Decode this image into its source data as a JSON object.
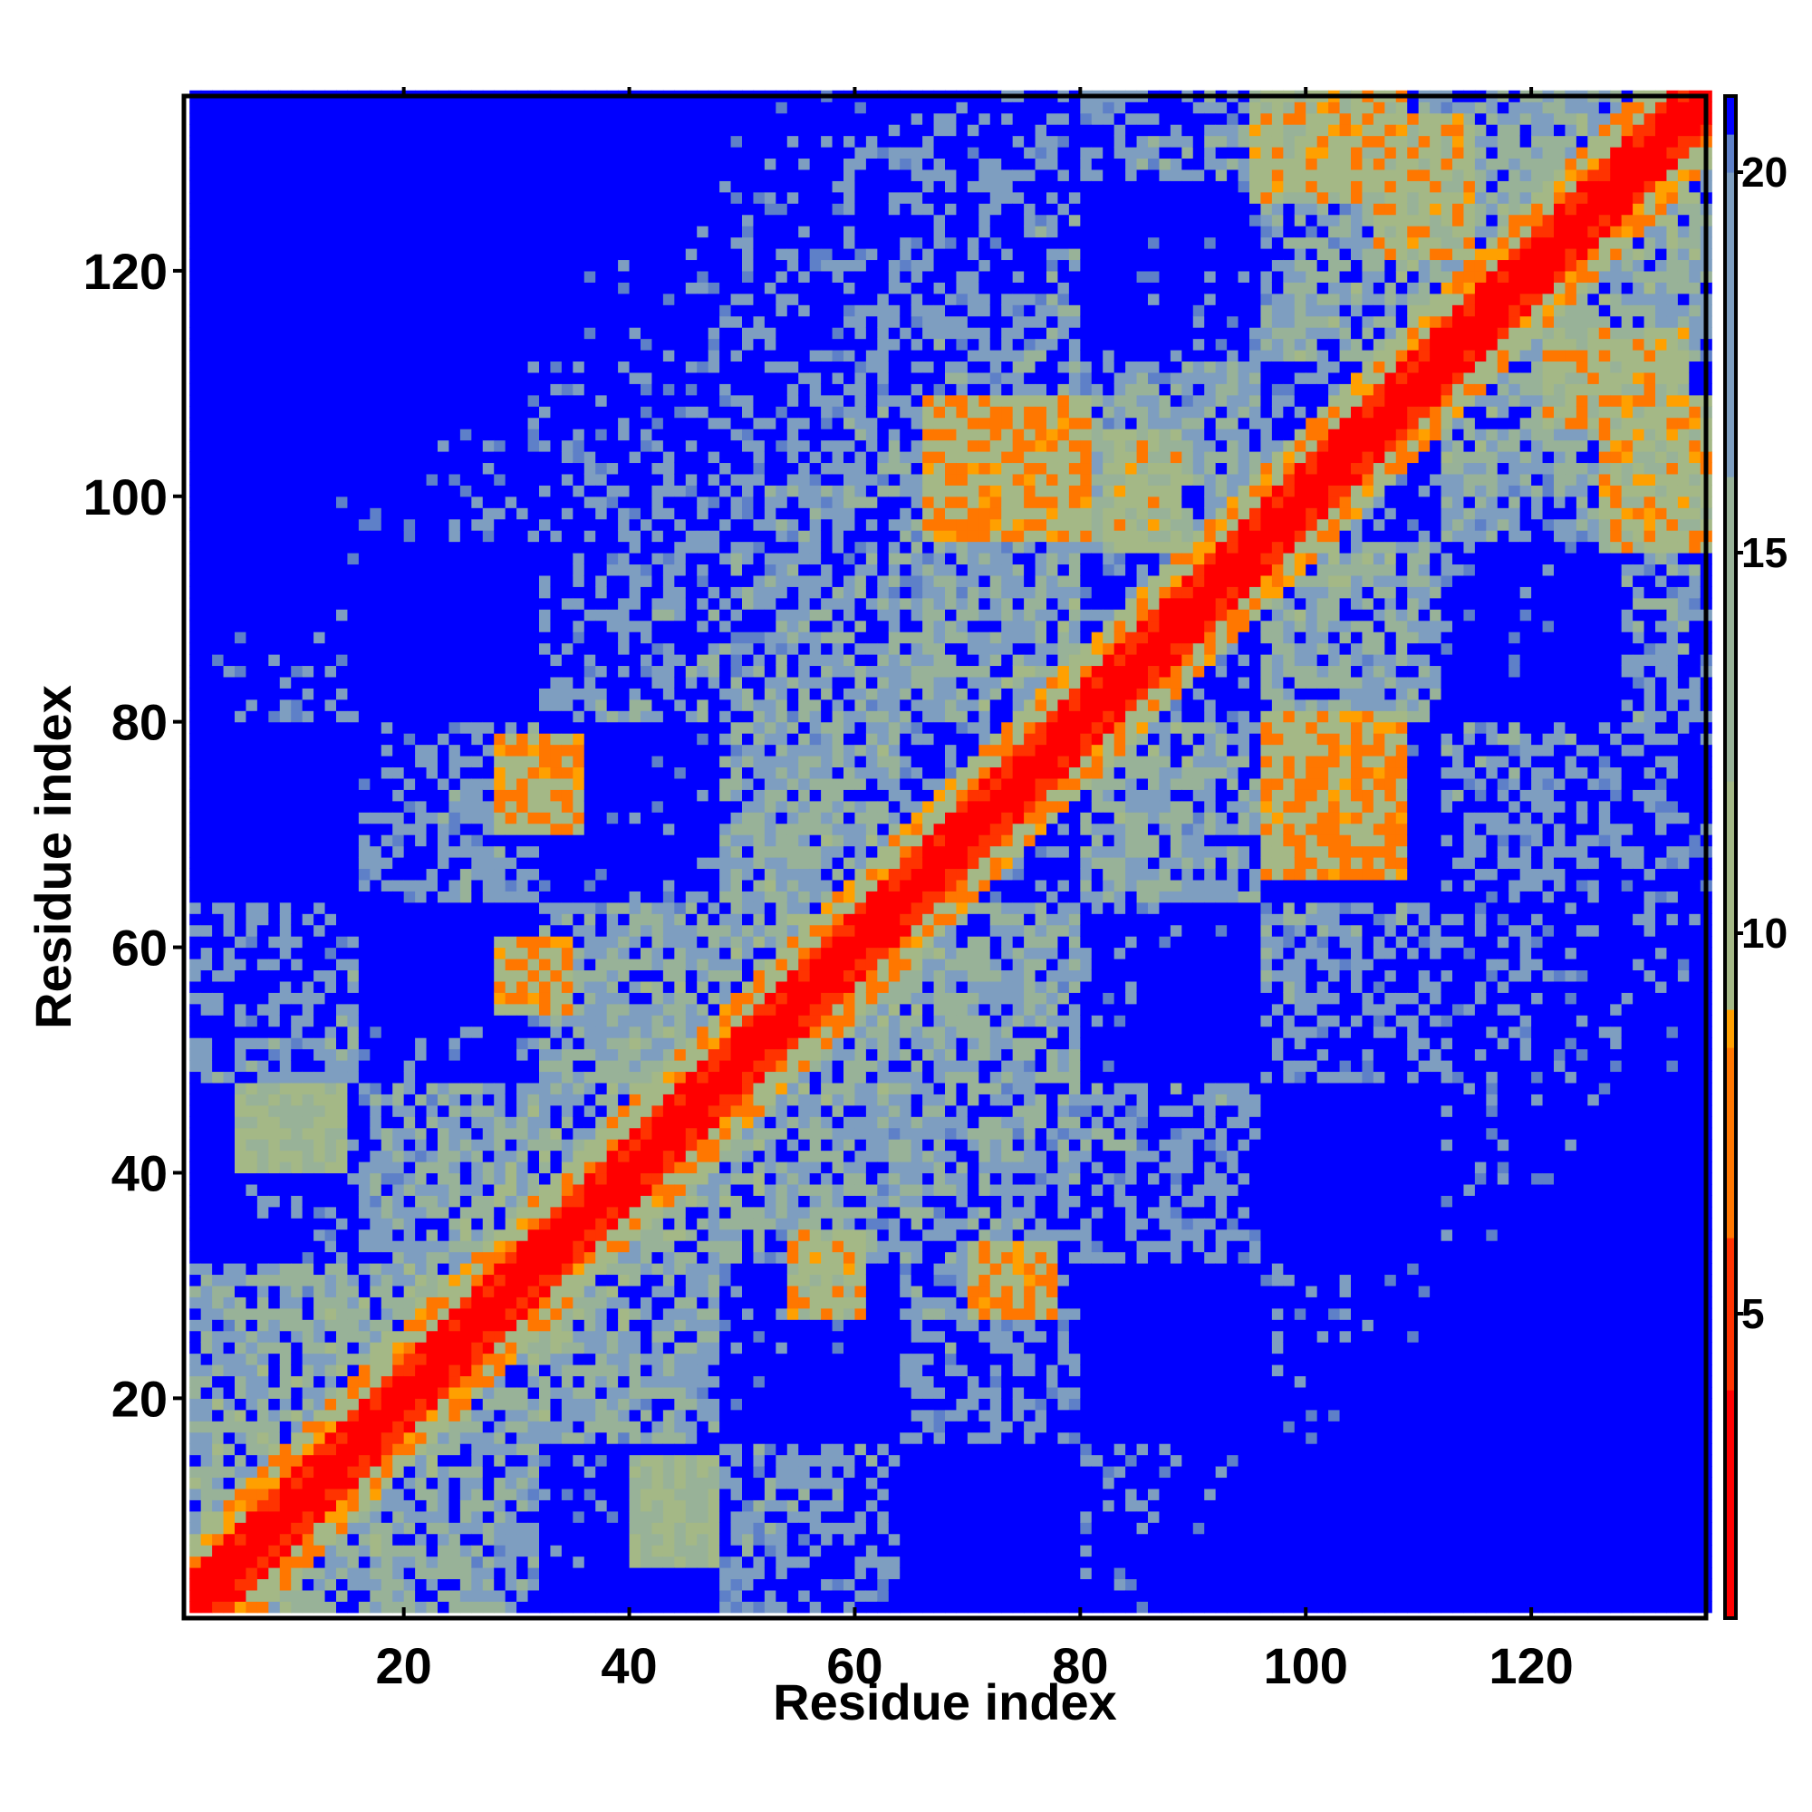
{
  "chart_data": {
    "type": "heatmap",
    "title": "",
    "xlabel": "Residue index",
    "ylabel": "Residue index",
    "n_residues": 135,
    "xlim": [
      1,
      135
    ],
    "ylim": [
      1,
      135
    ],
    "x_ticks": [
      20,
      40,
      60,
      80,
      100,
      120
    ],
    "y_ticks": [
      20,
      40,
      60,
      80,
      100,
      120
    ],
    "colorbar": {
      "ticks": [
        5,
        10,
        15,
        20
      ],
      "range": [
        1,
        21
      ],
      "orientation": "vertical",
      "position": "right"
    },
    "colormap_stops": [
      {
        "value": 1,
        "color": "#ff0000"
      },
      {
        "value": 4,
        "color": "#ff3300"
      },
      {
        "value": 6,
        "color": "#ff7700"
      },
      {
        "value": 8.5,
        "color": "#ffa000"
      },
      {
        "value": 9,
        "color": "#a4b886"
      },
      {
        "value": 12,
        "color": "#98b298"
      },
      {
        "value": 16,
        "color": "#7e9ec0"
      },
      {
        "value": 20,
        "color": "#5e80c8"
      },
      {
        "value": 21,
        "color": "#0000ff"
      }
    ],
    "diagonal_band": {
      "description_value": "distance increases with |i-j|"
    },
    "contact_regions": [
      {
        "i": [
          28,
          34
        ],
        "j": [
          54,
          60
        ],
        "min": 6
      },
      {
        "i": [
          28,
          35
        ],
        "j": [
          70,
          78
        ],
        "min": 6
      },
      {
        "i": [
          54,
          60
        ],
        "j": [
          27,
          34
        ],
        "min": 7
      },
      {
        "i": [
          70,
          77
        ],
        "j": [
          27,
          33
        ],
        "min": 6
      },
      {
        "i": [
          96,
          108
        ],
        "j": [
          66,
          80
        ],
        "min": 6
      },
      {
        "i": [
          66,
          80
        ],
        "j": [
          96,
          108
        ],
        "min": 6
      },
      {
        "i": [
          106,
          114
        ],
        "j": [
          121,
          133
        ],
        "min": 7
      },
      {
        "i": [
          121,
          133
        ],
        "j": [
          106,
          114
        ],
        "min": 7
      },
      {
        "i": [
          126,
          135
        ],
        "j": [
          95,
          108
        ],
        "min": 7
      },
      {
        "i": [
          95,
          108
        ],
        "j": [
          126,
          135
        ],
        "min": 7
      },
      {
        "i": [
          82,
          88
        ],
        "j": [
          95,
          105
        ],
        "min": 8
      },
      {
        "i": [
          5,
          14
        ],
        "j": [
          40,
          47
        ],
        "min": 9
      },
      {
        "i": [
          40,
          47
        ],
        "j": [
          5,
          14
        ],
        "min": 9
      }
    ]
  }
}
